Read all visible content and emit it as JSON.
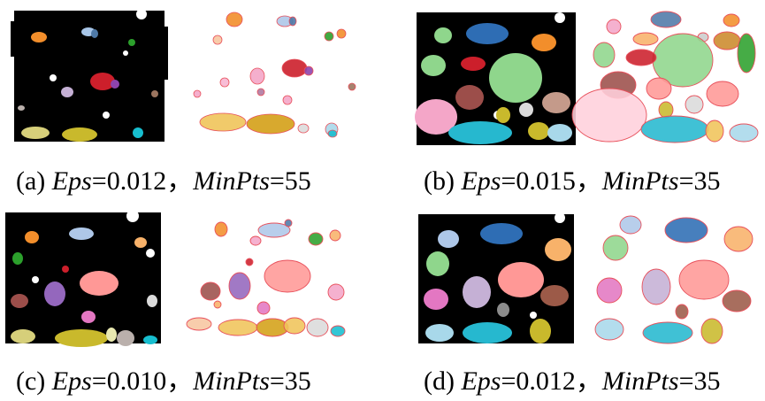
{
  "figure": {
    "panels": [
      {
        "id": "a",
        "letter": "(a)",
        "eps_label": "Eps",
        "eps_value": "=0.012，",
        "minpts_label": "MinPts",
        "minpts_value": "=55",
        "clusters": [
          {
            "color": "#f28e2b"
          },
          {
            "color": "#4e79a7"
          },
          {
            "color": "#cc1f2b"
          },
          {
            "color": "#b07aa1"
          },
          {
            "color": "#c9b92c"
          },
          {
            "color": "#bab0ac"
          },
          {
            "color": "#2ca02c"
          },
          {
            "color": "#9c755f"
          },
          {
            "color": "#17becf"
          },
          {
            "color": "#e377c2"
          }
        ]
      },
      {
        "id": "b",
        "letter": "(b)",
        "eps_label": "Eps",
        "eps_value": "=0.015，",
        "minpts_label": "MinPts",
        "minpts_value": "=35",
        "clusters": [
          {
            "color": "#2e6db4"
          },
          {
            "color": "#8fd68c"
          },
          {
            "color": "#f28e2b"
          },
          {
            "color": "#cc1f2b"
          },
          {
            "color": "#f4a6c8"
          },
          {
            "color": "#9c4e4a"
          },
          {
            "color": "#26b8cf"
          },
          {
            "color": "#c9b92c"
          },
          {
            "color": "#bab0ac"
          },
          {
            "color": "#2ca02c"
          }
        ]
      },
      {
        "id": "c",
        "letter": "(c)",
        "eps_label": "Eps",
        "eps_value": "=0.010，",
        "minpts_label": "MinPts",
        "minpts_value": "=35",
        "clusters": [
          {
            "color": "#ff9896"
          },
          {
            "color": "#9467bd"
          },
          {
            "color": "#c9b92c"
          },
          {
            "color": "#aec7e8"
          },
          {
            "color": "#f28e2b"
          },
          {
            "color": "#9c4e4a"
          },
          {
            "color": "#2ca02c"
          },
          {
            "color": "#e377c2"
          },
          {
            "color": "#17becf"
          },
          {
            "color": "#cc1f2b"
          }
        ]
      },
      {
        "id": "d",
        "letter": "(d)",
        "eps_label": "Eps",
        "eps_value": "=0.012，",
        "minpts_label": "MinPts",
        "minpts_value": "=35",
        "clusters": [
          {
            "color": "#ff9896"
          },
          {
            "color": "#2e6db4"
          },
          {
            "color": "#8fd68c"
          },
          {
            "color": "#f8b26a"
          },
          {
            "color": "#c5b0d5"
          },
          {
            "color": "#e377c2"
          },
          {
            "color": "#9c5a48"
          },
          {
            "color": "#26b8cf"
          },
          {
            "color": "#c9b92c"
          },
          {
            "color": "#a8d8ea"
          }
        ]
      }
    ],
    "colors": {
      "noise": "#000000",
      "mesh": "#e8505b",
      "background": "#ffffff"
    }
  }
}
